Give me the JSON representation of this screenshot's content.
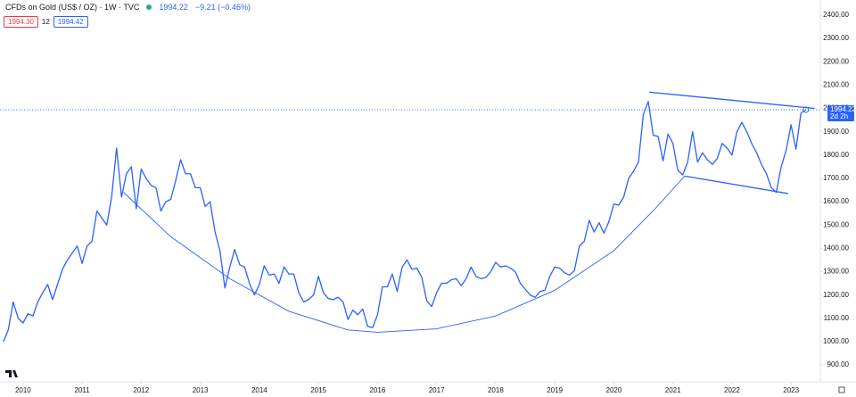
{
  "chart_data": {
    "type": "line",
    "title": "CFDs on Gold (US$ / OZ) · 1W · TVC",
    "last_price": 1994.22,
    "change": "−9.21 (−0.46%)",
    "countdown": "2d 2h",
    "quote": {
      "bid": "1994.30",
      "spread": "12",
      "ask": "1994.42"
    },
    "color": "#2962ff",
    "xlim": [
      2009.61,
      2023.42
    ],
    "ylim": [
      839,
      2465
    ],
    "xticks": [
      2010,
      2011,
      2012,
      2013,
      2014,
      2015,
      2016,
      2017,
      2018,
      2019,
      2020,
      2021,
      2022,
      2023
    ],
    "yticks": [
      {
        "value": 900,
        "label": "900.00"
      },
      {
        "value": 1000,
        "label": "1000.00"
      },
      {
        "value": 1100,
        "label": "1100.00"
      },
      {
        "value": 1200,
        "label": "1200.00"
      },
      {
        "value": 1300,
        "label": "1300.00"
      },
      {
        "value": 1400,
        "label": "1400.00"
      },
      {
        "value": 1500,
        "label": "1500.00"
      },
      {
        "value": 1600,
        "label": "1600.00"
      },
      {
        "value": 1700,
        "label": "1700.00"
      },
      {
        "value": 1800,
        "label": "1800.00"
      },
      {
        "value": 1900,
        "label": "1900.00"
      },
      {
        "value": 2000,
        "label": "2000.00"
      },
      {
        "value": 2100,
        "label": "2100.00"
      },
      {
        "value": 2200,
        "label": "2200.00"
      },
      {
        "value": 2300,
        "label": "2300.00"
      },
      {
        "value": 2400,
        "label": "2400.00"
      }
    ],
    "grid": false,
    "x": [
      2009.667,
      2009.75,
      2009.833,
      2009.917,
      2010.0,
      2010.083,
      2010.167,
      2010.25,
      2010.333,
      2010.417,
      2010.5,
      2010.583,
      2010.667,
      2010.75,
      2010.833,
      2010.917,
      2011.0,
      2011.083,
      2011.167,
      2011.25,
      2011.333,
      2011.417,
      2011.5,
      2011.583,
      2011.667,
      2011.75,
      2011.833,
      2011.917,
      2012.0,
      2012.083,
      2012.167,
      2012.25,
      2012.333,
      2012.417,
      2012.5,
      2012.583,
      2012.667,
      2012.75,
      2012.833,
      2012.917,
      2013.0,
      2013.083,
      2013.167,
      2013.25,
      2013.333,
      2013.417,
      2013.5,
      2013.583,
      2013.667,
      2013.75,
      2013.833,
      2013.917,
      2014.0,
      2014.083,
      2014.167,
      2014.25,
      2014.333,
      2014.417,
      2014.5,
      2014.583,
      2014.667,
      2014.75,
      2014.833,
      2014.917,
      2015.0,
      2015.083,
      2015.167,
      2015.25,
      2015.333,
      2015.417,
      2015.5,
      2015.583,
      2015.667,
      2015.75,
      2015.833,
      2015.917,
      2016.0,
      2016.083,
      2016.167,
      2016.25,
      2016.333,
      2016.417,
      2016.5,
      2016.583,
      2016.667,
      2016.75,
      2016.833,
      2016.917,
      2017.0,
      2017.083,
      2017.167,
      2017.25,
      2017.333,
      2017.417,
      2017.5,
      2017.583,
      2017.667,
      2017.75,
      2017.833,
      2017.917,
      2018.0,
      2018.083,
      2018.167,
      2018.25,
      2018.333,
      2018.417,
      2018.5,
      2018.583,
      2018.667,
      2018.75,
      2018.833,
      2018.917,
      2019.0,
      2019.083,
      2019.167,
      2019.25,
      2019.333,
      2019.417,
      2019.5,
      2019.583,
      2019.667,
      2019.75,
      2019.833,
      2019.917,
      2020.0,
      2020.083,
      2020.167,
      2020.25,
      2020.333,
      2020.417,
      2020.5,
      2020.583,
      2020.667,
      2020.75,
      2020.833,
      2020.917,
      2021.0,
      2021.083,
      2021.167,
      2021.25,
      2021.333,
      2021.417,
      2021.5,
      2021.583,
      2021.667,
      2021.75,
      2021.833,
      2021.917,
      2022.0,
      2022.083,
      2022.167,
      2022.25,
      2022.333,
      2022.417,
      2022.5,
      2022.583,
      2022.667,
      2022.75,
      2022.833,
      2022.917,
      2023.0,
      2023.083,
      2023.167,
      2023.25
    ],
    "values": [
      1000,
      1050,
      1170,
      1100,
      1080,
      1120,
      1110,
      1170,
      1210,
      1245,
      1180,
      1245,
      1310,
      1350,
      1380,
      1410,
      1335,
      1410,
      1430,
      1560,
      1530,
      1500,
      1620,
      1830,
      1620,
      1720,
      1750,
      1570,
      1740,
      1700,
      1670,
      1660,
      1560,
      1600,
      1610,
      1690,
      1780,
      1720,
      1720,
      1660,
      1660,
      1580,
      1600,
      1470,
      1390,
      1230,
      1320,
      1395,
      1330,
      1320,
      1250,
      1200,
      1245,
      1325,
      1285,
      1290,
      1250,
      1320,
      1290,
      1290,
      1210,
      1170,
      1180,
      1200,
      1280,
      1210,
      1185,
      1180,
      1190,
      1170,
      1095,
      1135,
      1115,
      1140,
      1065,
      1060,
      1115,
      1235,
      1235,
      1290,
      1215,
      1320,
      1350,
      1310,
      1315,
      1275,
      1175,
      1150,
      1210,
      1250,
      1250,
      1265,
      1270,
      1240,
      1270,
      1320,
      1280,
      1270,
      1275,
      1300,
      1340,
      1320,
      1325,
      1315,
      1300,
      1250,
      1225,
      1200,
      1190,
      1215,
      1220,
      1280,
      1320,
      1315,
      1295,
      1285,
      1305,
      1410,
      1430,
      1520,
      1470,
      1510,
      1465,
      1515,
      1590,
      1585,
      1620,
      1700,
      1730,
      1770,
      1975,
      2030,
      1885,
      1880,
      1775,
      1890,
      1850,
      1735,
      1715,
      1770,
      1900,
      1770,
      1810,
      1780,
      1760,
      1785,
      1850,
      1830,
      1800,
      1900,
      1940,
      1900,
      1850,
      1810,
      1760,
      1720,
      1660,
      1640,
      1750,
      1820,
      1930,
      1825,
      1980,
      1994.22
    ],
    "drawings": [
      {
        "x": [
          2020.6,
          2023.4
        ],
        "y": [
          2070,
          2000
        ]
      },
      {
        "x": [
          2021.2,
          2022.95
        ],
        "y": [
          1710,
          1635
        ]
      },
      {
        "x": [
          2011.7,
          2012.5,
          2013.5,
          2014.5,
          2015.5,
          2016.0,
          2017.0,
          2018.0,
          2019.0,
          2020.0,
          2020.7,
          2021.2
        ],
        "y": [
          1640,
          1450,
          1270,
          1130,
          1050,
          1040,
          1055,
          1110,
          1220,
          1390,
          1570,
          1710
        ]
      }
    ]
  }
}
